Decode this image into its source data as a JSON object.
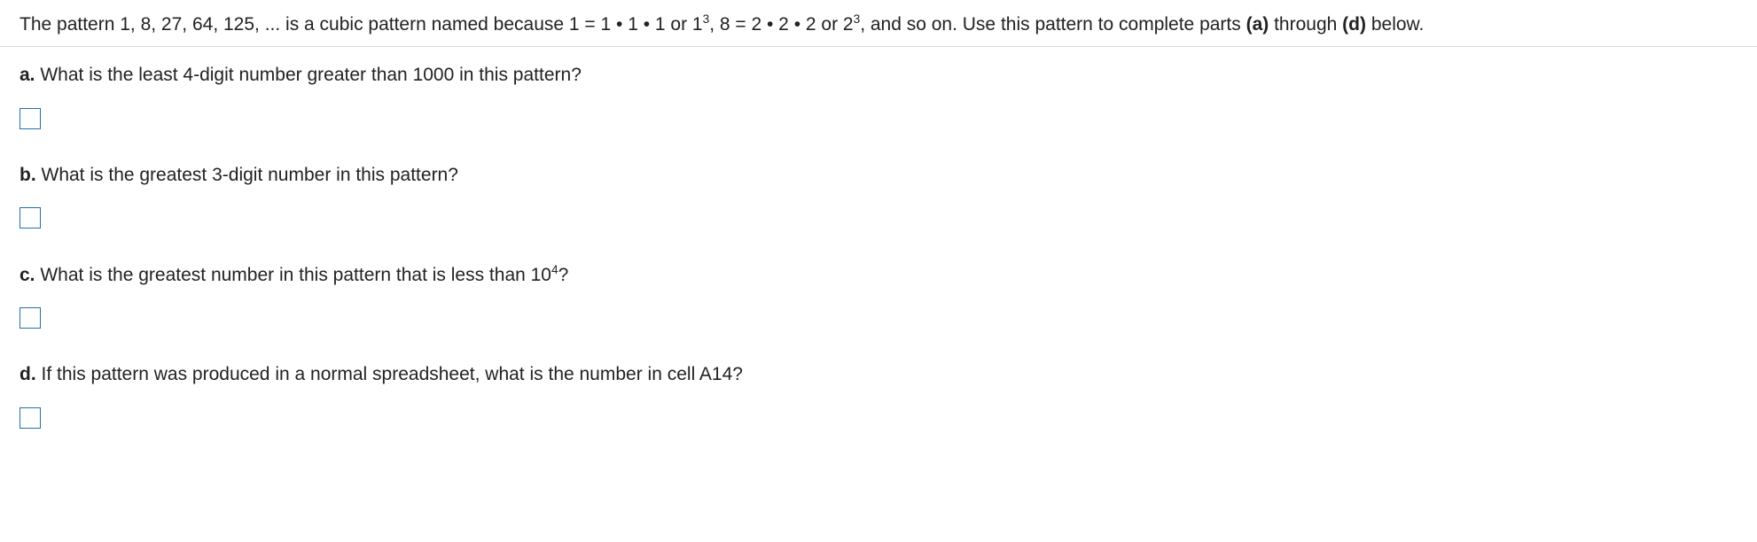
{
  "intro": {
    "t0": "The pattern 1, 8, 27, 64, 125, ... is a cubic pattern named because 1 = 1 • 1 • 1 or 1",
    "exp1": "3",
    "t1": ", 8 = 2 • 2 • 2 or 2",
    "exp2": "3",
    "t2": ", and so on. Use this pattern to complete parts ",
    "bold_a": "(a)",
    "t3": " through ",
    "bold_d": "(d)",
    "t4": " below."
  },
  "parts": {
    "a": {
      "label": "a.",
      "text": " What is the least 4-digit number greater than 1000 in this pattern?"
    },
    "b": {
      "label": "b.",
      "text": " What is the greatest 3-digit number in this pattern?"
    },
    "c": {
      "label": "c.",
      "text_pre": " What is the greatest number in this pattern that is less than 10",
      "exp": "4",
      "text_post": "?"
    },
    "d": {
      "label": "d.",
      "text": " If this pattern was produced in a normal spreadsheet, what is the number in cell A14?"
    }
  },
  "colors": {
    "input_border": "#1f6fb2",
    "text": "#222222",
    "divider": "#d6d6d6",
    "background": "#ffffff"
  },
  "fonts": {
    "family": "Arial",
    "base_size_pt": 16,
    "label_weight": "bold"
  }
}
